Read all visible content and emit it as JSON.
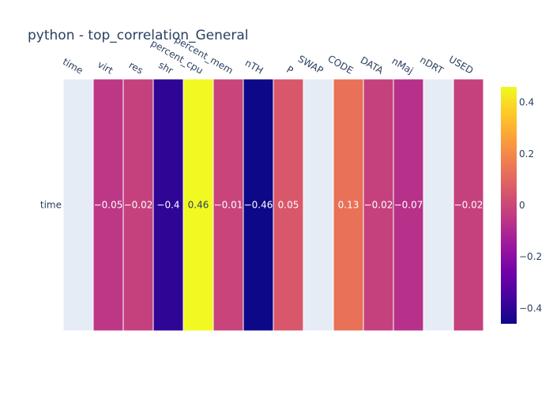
{
  "chart_data": {
    "type": "heatmap",
    "title": "python - top_correlation_General",
    "x_categories": [
      "time",
      "virt",
      "res",
      "shr",
      "percent_cpu",
      "percent_mem",
      "nTH",
      "P",
      "SWAP",
      "CODE",
      "DATA",
      "nMaj",
      "nDRT",
      "USED"
    ],
    "y_categories": [
      "time"
    ],
    "values": [
      [
        null,
        -0.05,
        -0.02,
        -0.4,
        0.46,
        -0.01,
        -0.46,
        0.05,
        null,
        0.13,
        -0.02,
        -0.07,
        null,
        -0.02
      ]
    ],
    "cell_labels": [
      [
        "",
        "−0.05",
        "−0.02",
        "−0.4",
        "0.46",
        "−0.01",
        "−0.46",
        "0.05",
        "",
        "0.13",
        "−0.02",
        "−0.07",
        "",
        "−0.02"
      ]
    ],
    "zmin": -0.46,
    "zmax": 0.46,
    "colorscale": "plasma",
    "colorbar": {
      "ticks": [
        -0.4,
        -0.2,
        0,
        0.2,
        0.4
      ],
      "tick_labels": [
        "−0.4",
        "−0.2",
        "0",
        "0.2",
        "0.4"
      ]
    },
    "missing_color": "#e5ecf6",
    "label_color_dark": "#2a3f5f",
    "label_color_light": "#ffffff",
    "x_axis_position": "top",
    "grid": false
  }
}
